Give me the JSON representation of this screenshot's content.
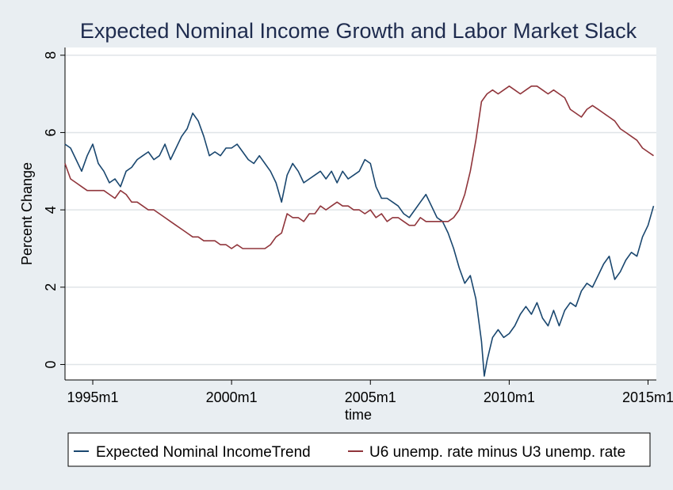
{
  "chart_data": {
    "type": "line",
    "title": "Expected Nominal Income Growth and Labor Market Slack",
    "xlabel": "time",
    "ylabel": "Percent Change",
    "xlim": [
      1994.0,
      2015.3
    ],
    "ylim": [
      -0.4,
      8.2
    ],
    "x_ticks": [
      {
        "value": 1995.0,
        "label": "1995m1"
      },
      {
        "value": 2000.0,
        "label": "2000m1"
      },
      {
        "value": 2005.0,
        "label": "2005m1"
      },
      {
        "value": 2010.0,
        "label": "2010m1"
      },
      {
        "value": 2015.0,
        "label": "2015m1"
      }
    ],
    "y_ticks": [
      {
        "value": 0,
        "label": "0"
      },
      {
        "value": 2,
        "label": "2"
      },
      {
        "value": 4,
        "label": "4"
      },
      {
        "value": 6,
        "label": "6"
      },
      {
        "value": 8,
        "label": "8"
      }
    ],
    "grid": true,
    "legend_position": "bottom",
    "series": [
      {
        "name": "Expected Nominal IncomeTrend",
        "color": "#1a476f",
        "x": [
          1994.0,
          1994.2,
          1994.4,
          1994.6,
          1994.8,
          1995.0,
          1995.2,
          1995.4,
          1995.6,
          1995.8,
          1996.0,
          1996.2,
          1996.4,
          1996.6,
          1996.8,
          1997.0,
          1997.2,
          1997.4,
          1997.6,
          1997.8,
          1998.0,
          1998.2,
          1998.4,
          1998.6,
          1998.8,
          1999.0,
          1999.2,
          1999.4,
          1999.6,
          1999.8,
          2000.0,
          2000.2,
          2000.4,
          2000.6,
          2000.8,
          2001.0,
          2001.2,
          2001.4,
          2001.6,
          2001.8,
          2002.0,
          2002.2,
          2002.4,
          2002.6,
          2002.8,
          2003.0,
          2003.2,
          2003.4,
          2003.6,
          2003.8,
          2004.0,
          2004.2,
          2004.4,
          2004.6,
          2004.8,
          2005.0,
          2005.2,
          2005.4,
          2005.6,
          2005.8,
          2006.0,
          2006.2,
          2006.4,
          2006.6,
          2006.8,
          2007.0,
          2007.2,
          2007.4,
          2007.6,
          2007.8,
          2008.0,
          2008.2,
          2008.4,
          2008.6,
          2008.8,
          2009.0,
          2009.1,
          2009.2,
          2009.4,
          2009.6,
          2009.8,
          2010.0,
          2010.2,
          2010.4,
          2010.6,
          2010.8,
          2011.0,
          2011.2,
          2011.4,
          2011.6,
          2011.8,
          2012.0,
          2012.2,
          2012.4,
          2012.6,
          2012.8,
          2013.0,
          2013.2,
          2013.4,
          2013.6,
          2013.8,
          2014.0,
          2014.2,
          2014.4,
          2014.6,
          2014.8,
          2015.0,
          2015.2
        ],
        "y": [
          5.7,
          5.6,
          5.3,
          5.0,
          5.4,
          5.7,
          5.2,
          5.0,
          4.7,
          4.8,
          4.6,
          5.0,
          5.1,
          5.3,
          5.4,
          5.5,
          5.3,
          5.4,
          5.7,
          5.3,
          5.6,
          5.9,
          6.1,
          6.5,
          6.3,
          5.9,
          5.4,
          5.5,
          5.4,
          5.6,
          5.6,
          5.7,
          5.5,
          5.3,
          5.2,
          5.4,
          5.2,
          5.0,
          4.7,
          4.2,
          4.9,
          5.2,
          5.0,
          4.7,
          4.8,
          4.9,
          5.0,
          4.8,
          5.0,
          4.7,
          5.0,
          4.8,
          4.9,
          5.0,
          5.3,
          5.2,
          4.6,
          4.3,
          4.3,
          4.2,
          4.1,
          3.9,
          3.8,
          4.0,
          4.2,
          4.4,
          4.1,
          3.8,
          3.7,
          3.4,
          3.0,
          2.5,
          2.1,
          2.3,
          1.7,
          0.6,
          -0.3,
          0.1,
          0.7,
          0.9,
          0.7,
          0.8,
          1.0,
          1.3,
          1.5,
          1.3,
          1.6,
          1.2,
          1.0,
          1.4,
          1.0,
          1.4,
          1.6,
          1.5,
          1.9,
          2.1,
          2.0,
          2.3,
          2.6,
          2.8,
          2.2,
          2.4,
          2.7,
          2.9,
          2.8,
          3.3,
          3.6,
          4.1
        ]
      },
      {
        "name": "U6 unemp. rate minus U3 unemp. rate",
        "color": "#90353b",
        "x": [
          1994.0,
          1994.2,
          1994.4,
          1994.6,
          1994.8,
          1995.0,
          1995.2,
          1995.4,
          1995.6,
          1995.8,
          1996.0,
          1996.2,
          1996.4,
          1996.6,
          1996.8,
          1997.0,
          1997.2,
          1997.4,
          1997.6,
          1997.8,
          1998.0,
          1998.2,
          1998.4,
          1998.6,
          1998.8,
          1999.0,
          1999.2,
          1999.4,
          1999.6,
          1999.8,
          2000.0,
          2000.2,
          2000.4,
          2000.6,
          2000.8,
          2001.0,
          2001.2,
          2001.4,
          2001.6,
          2001.8,
          2002.0,
          2002.2,
          2002.4,
          2002.6,
          2002.8,
          2003.0,
          2003.2,
          2003.4,
          2003.6,
          2003.8,
          2004.0,
          2004.2,
          2004.4,
          2004.6,
          2004.8,
          2005.0,
          2005.2,
          2005.4,
          2005.6,
          2005.8,
          2006.0,
          2006.2,
          2006.4,
          2006.6,
          2006.8,
          2007.0,
          2007.2,
          2007.4,
          2007.6,
          2007.8,
          2008.0,
          2008.2,
          2008.4,
          2008.6,
          2008.8,
          2009.0,
          2009.2,
          2009.4,
          2009.6,
          2009.8,
          2010.0,
          2010.2,
          2010.4,
          2010.6,
          2010.8,
          2011.0,
          2011.2,
          2011.4,
          2011.6,
          2011.8,
          2012.0,
          2012.2,
          2012.4,
          2012.6,
          2012.8,
          2013.0,
          2013.2,
          2013.4,
          2013.6,
          2013.8,
          2014.0,
          2014.2,
          2014.4,
          2014.6,
          2014.8,
          2015.0,
          2015.2
        ],
        "y": [
          5.2,
          4.8,
          4.7,
          4.6,
          4.5,
          4.5,
          4.5,
          4.5,
          4.4,
          4.3,
          4.5,
          4.4,
          4.2,
          4.2,
          4.1,
          4.0,
          4.0,
          3.9,
          3.8,
          3.7,
          3.6,
          3.5,
          3.4,
          3.3,
          3.3,
          3.2,
          3.2,
          3.2,
          3.1,
          3.1,
          3.0,
          3.1,
          3.0,
          3.0,
          3.0,
          3.0,
          3.0,
          3.1,
          3.3,
          3.4,
          3.9,
          3.8,
          3.8,
          3.7,
          3.9,
          3.9,
          4.1,
          4.0,
          4.1,
          4.2,
          4.1,
          4.1,
          4.0,
          4.0,
          3.9,
          4.0,
          3.8,
          3.9,
          3.7,
          3.8,
          3.8,
          3.7,
          3.6,
          3.6,
          3.8,
          3.7,
          3.7,
          3.7,
          3.7,
          3.7,
          3.8,
          4.0,
          4.4,
          5.0,
          5.8,
          6.8,
          7.0,
          7.1,
          7.0,
          7.1,
          7.2,
          7.1,
          7.0,
          7.1,
          7.2,
          7.2,
          7.1,
          7.0,
          7.1,
          7.0,
          6.9,
          6.6,
          6.5,
          6.4,
          6.6,
          6.7,
          6.6,
          6.5,
          6.4,
          6.3,
          6.1,
          6.0,
          5.9,
          5.8,
          5.6,
          5.5,
          5.4
        ]
      }
    ]
  }
}
